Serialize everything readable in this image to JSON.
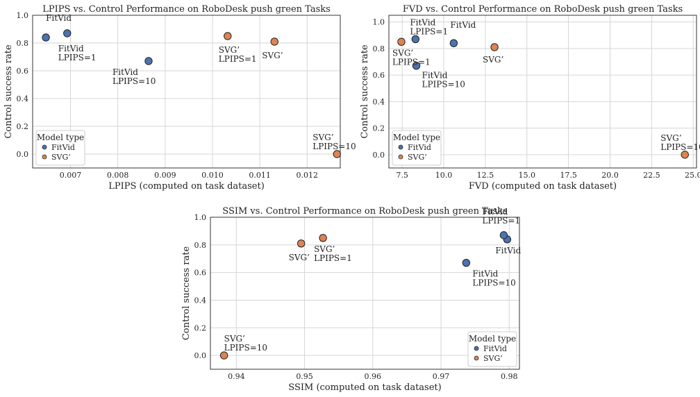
{
  "colors": {
    "fitvid": "#4c72b0",
    "svg": "#dd8452",
    "edge": "#222222",
    "grid": "#d6d6d6"
  },
  "chart_data": [
    {
      "type": "scatter",
      "title": "LPIPS vs. Control Performance on RoboDesk push green Tasks",
      "xlabel": "LPIPS (computed on task dataset)",
      "ylabel": "Control success rate",
      "xlim": [
        0.0062,
        0.0127
      ],
      "ylim": [
        -0.1,
        1.0
      ],
      "xticks": [
        0.007,
        0.008,
        0.009,
        0.01,
        0.011,
        0.012
      ],
      "xtick_labels": [
        "0.007",
        "0.008",
        "0.009",
        "0.010",
        "0.011",
        "0.012"
      ],
      "yticks": [
        0.0,
        0.2,
        0.4,
        0.6,
        0.8,
        1.0
      ],
      "ytick_labels": [
        "0.0",
        "0.2",
        "0.4",
        "0.6",
        "0.8",
        "1.0"
      ],
      "grid": true,
      "legend": {
        "title": "Model type",
        "placement": "lower-left",
        "entries": [
          "FitVid",
          "SVG’"
        ]
      },
      "points": [
        {
          "series": "FitVid",
          "x": 0.00648,
          "y": 0.84,
          "err": 0.02,
          "label": [
            "FitVid"
          ],
          "ann_dx": 0,
          "ann_dy": -24,
          "anchor": "start"
        },
        {
          "series": "FitVid",
          "x": 0.00693,
          "y": 0.87,
          "err": 0.0,
          "label": [
            "FitVid",
            "LPIPS=1"
          ],
          "ann_dx": -13,
          "ann_dy": 26,
          "anchor": "start"
        },
        {
          "series": "FitVid",
          "x": 0.00865,
          "y": 0.67,
          "err": 0.0,
          "label": [
            "FitVid",
            "LPIPS=10"
          ],
          "ann_dx": -52,
          "ann_dy": 20,
          "anchor": "start"
        },
        {
          "series": "SVG’",
          "x": 0.01032,
          "y": 0.85,
          "err": 0.02,
          "label": [
            "SVG’",
            "LPIPS=1"
          ],
          "ann_dx": -13,
          "ann_dy": 24,
          "anchor": "start"
        },
        {
          "series": "SVG’",
          "x": 0.01131,
          "y": 0.81,
          "err": 0.02,
          "label": [
            "SVG’"
          ],
          "ann_dx": -18,
          "ann_dy": 24,
          "anchor": "start"
        },
        {
          "series": "SVG’",
          "x": 0.01263,
          "y": 0.0,
          "err": 0.0,
          "label": [
            "SVG’",
            "LPIPS=10"
          ],
          "ann_dx": -35,
          "ann_dy": -20,
          "anchor": "start"
        }
      ]
    },
    {
      "type": "scatter",
      "title": "FVD vs. Control Performance on RoboDesk push green Tasks",
      "xlabel": "FVD (computed on task dataset)",
      "ylabel": "Control success rate",
      "xlim": [
        6.7,
        25.2
      ],
      "ylim": [
        -0.1,
        1.05
      ],
      "xticks": [
        7.5,
        10.0,
        12.5,
        15.0,
        17.5,
        20.0,
        22.5,
        25.0
      ],
      "xtick_labels": [
        "7.5",
        "10.0",
        "12.5",
        "15.0",
        "17.5",
        "20.0",
        "22.5",
        "25.0"
      ],
      "yticks": [
        0.0,
        0.2,
        0.4,
        0.6,
        0.8,
        1.0
      ],
      "ytick_labels": [
        "0.0",
        "0.2",
        "0.4",
        "0.6",
        "0.8",
        "1.0"
      ],
      "grid": true,
      "legend": {
        "title": "Model type",
        "placement": "lower-left",
        "entries": [
          "FitVid",
          "SVG’"
        ]
      },
      "points": [
        {
          "series": "FitVid",
          "x": 10.6,
          "y": 0.84,
          "err": 0.02,
          "label": [
            "FitVid"
          ],
          "ann_dx": -5,
          "ann_dy": -22,
          "anchor": "start"
        },
        {
          "series": "FitVid",
          "x": 8.3,
          "y": 0.87,
          "err": 0.0,
          "label": [
            "FitVid",
            "LPIPS=1"
          ],
          "ann_dx": -8,
          "ann_dy": -20,
          "anchor": "start"
        },
        {
          "series": "FitVid",
          "x": 8.35,
          "y": 0.67,
          "err": 0.0,
          "label": [
            "FitVid",
            "LPIPS=10"
          ],
          "ann_dx": 8,
          "ann_dy": 18,
          "anchor": "start"
        },
        {
          "series": "SVG’",
          "x": 7.45,
          "y": 0.85,
          "err": 0.02,
          "label": [
            "SVG’",
            "LPIPS=1"
          ],
          "ann_dx": -13,
          "ann_dy": 20,
          "anchor": "start"
        },
        {
          "series": "SVG’",
          "x": 13.05,
          "y": 0.81,
          "err": 0.02,
          "label": [
            "SVG’"
          ],
          "ann_dx": -17,
          "ann_dy": 22,
          "anchor": "start"
        },
        {
          "series": "SVG’",
          "x": 24.5,
          "y": 0.0,
          "err": 0.0,
          "label": [
            "SVG’",
            "LPIPS=10"
          ],
          "ann_dx": -35,
          "ann_dy": -20,
          "anchor": "start"
        }
      ]
    },
    {
      "type": "scatter",
      "title": "SSIM vs. Control Performance on RoboDesk push green Tasks",
      "xlabel": "SSIM (computed on task dataset)",
      "ylabel": "Control success rate",
      "xlim": [
        0.9362,
        0.9815
      ],
      "ylim": [
        -0.1,
        1.0
      ],
      "xticks": [
        0.94,
        0.95,
        0.96,
        0.97,
        0.98
      ],
      "xtick_labels": [
        "0.94",
        "0.95",
        "0.96",
        "0.97",
        "0.98"
      ],
      "yticks": [
        0.0,
        0.2,
        0.4,
        0.6,
        0.8,
        1.0
      ],
      "ytick_labels": [
        "0.0",
        "0.2",
        "0.4",
        "0.6",
        "0.8",
        "1.0"
      ],
      "grid": true,
      "legend": {
        "title": "Model type",
        "placement": "lower-right",
        "entries": [
          "FitVid",
          "SVG’"
        ]
      },
      "points": [
        {
          "series": "FitVid",
          "x": 0.9797,
          "y": 0.84,
          "err": 0.02,
          "label": [
            "FitVid"
          ],
          "ann_dx": -17,
          "ann_dy": 20,
          "anchor": "start"
        },
        {
          "series": "FitVid",
          "x": 0.9792,
          "y": 0.87,
          "err": 0.0,
          "label": [
            "FitVid",
            "LPIPS=1"
          ],
          "ann_dx": -31,
          "ann_dy": -30,
          "anchor": "start"
        },
        {
          "series": "FitVid",
          "x": 0.9737,
          "y": 0.67,
          "err": 0.0,
          "label": [
            "FitVid",
            "LPIPS=10"
          ],
          "ann_dx": 9,
          "ann_dy": 20,
          "anchor": "start"
        },
        {
          "series": "SVG’",
          "x": 0.9527,
          "y": 0.85,
          "err": 0.02,
          "label": [
            "SVG’",
            "LPIPS=1"
          ],
          "ann_dx": -13,
          "ann_dy": 20,
          "anchor": "start"
        },
        {
          "series": "SVG’",
          "x": 0.9495,
          "y": 0.81,
          "err": 0.02,
          "label": [
            "SVG’"
          ],
          "ann_dx": -18,
          "ann_dy": 24,
          "anchor": "start"
        },
        {
          "series": "SVG’",
          "x": 0.9382,
          "y": 0.0,
          "err": 0.0,
          "label": [
            "SVG’",
            "LPIPS=10"
          ],
          "ann_dx": 0,
          "ann_dy": -20,
          "anchor": "start"
        }
      ]
    }
  ]
}
